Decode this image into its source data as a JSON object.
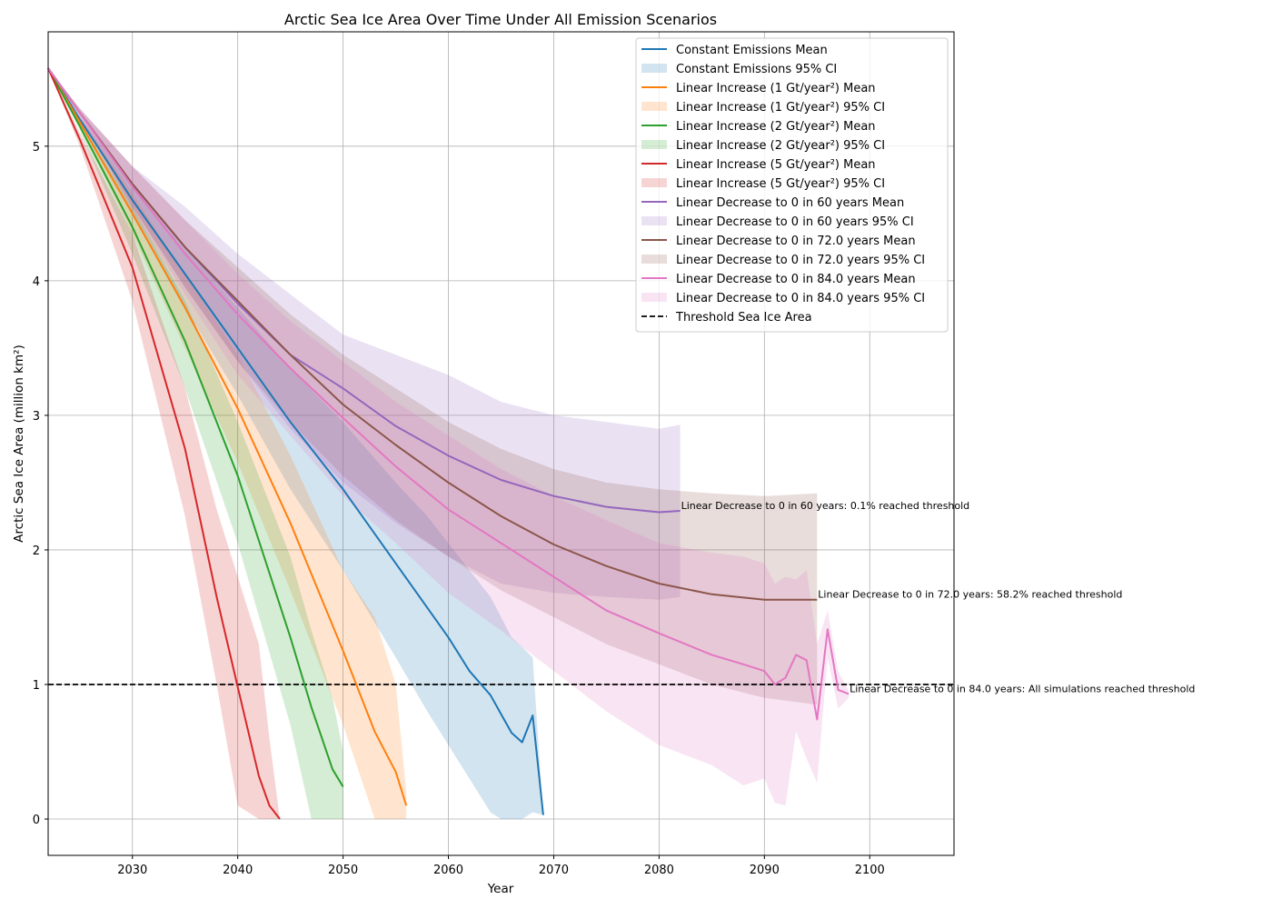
{
  "chart_data": {
    "type": "line",
    "title": "Arctic Sea Ice Area Over Time Under All Emission Scenarios",
    "xlabel": "Year",
    "ylabel": "Arctic Sea Ice Area (million km²)",
    "xlim": [
      2022,
      2108
    ],
    "ylim": [
      -0.27,
      5.85
    ],
    "x_ticks": [
      2030,
      2040,
      2050,
      2060,
      2070,
      2080,
      2090,
      2100
    ],
    "y_ticks": [
      0,
      1,
      2,
      3,
      4,
      5
    ],
    "grid": true,
    "legend_position": "upper right",
    "threshold": {
      "label": "Threshold Sea Ice Area",
      "value": 1.0,
      "color": "#000000",
      "style": "dashed"
    },
    "series": [
      {
        "name": "Constant Emissions Mean",
        "ci_name": "Constant Emissions 95% CI",
        "color": "#1f77b4",
        "x": [
          2022,
          2025,
          2030,
          2035,
          2040,
          2045,
          2050,
          2055,
          2058,
          2060,
          2062,
          2064,
          2065,
          2066,
          2067,
          2068,
          2069
        ],
        "mean": [
          5.58,
          5.2,
          4.6,
          4.05,
          3.5,
          2.95,
          2.45,
          1.9,
          1.57,
          1.35,
          1.1,
          0.92,
          0.78,
          0.64,
          0.57,
          0.77,
          0.03
        ],
        "lower": [
          5.58,
          5.18,
          4.5,
          3.8,
          3.15,
          2.45,
          1.85,
          1.2,
          0.8,
          0.55,
          0.3,
          0.05,
          0.0,
          0.0,
          0.0,
          0.05,
          0.03
        ],
        "upper": [
          5.58,
          5.22,
          4.7,
          4.25,
          3.8,
          3.35,
          2.95,
          2.5,
          2.25,
          2.05,
          1.85,
          1.65,
          1.5,
          1.35,
          1.28,
          1.2,
          0.03
        ]
      },
      {
        "name": "Linear Increase (1 Gt/year²) Mean",
        "ci_name": "Linear Increase (1 Gt/year²) 95% CI",
        "color": "#ff7f0e",
        "x": [
          2022,
          2025,
          2030,
          2035,
          2040,
          2045,
          2050,
          2053,
          2055,
          2056
        ],
        "mean": [
          5.58,
          5.18,
          4.5,
          3.8,
          3.05,
          2.2,
          1.25,
          0.65,
          0.35,
          0.1
        ],
        "lower": [
          5.58,
          5.15,
          4.35,
          3.5,
          2.65,
          1.7,
          0.7,
          0.0,
          0.0,
          0.0
        ],
        "upper": [
          5.58,
          5.21,
          4.65,
          4.05,
          3.45,
          2.7,
          1.85,
          1.5,
          1.0,
          0.2
        ]
      },
      {
        "name": "Linear Increase (2 Gt/year²) Mean",
        "ci_name": "Linear Increase (2 Gt/year²) 95% CI",
        "color": "#2ca02c",
        "x": [
          2022,
          2025,
          2030,
          2035,
          2040,
          2045,
          2047,
          2049,
          2050
        ],
        "mean": [
          5.58,
          5.15,
          4.4,
          3.55,
          2.55,
          1.35,
          0.83,
          0.37,
          0.24
        ],
        "lower": [
          5.58,
          5.12,
          4.2,
          3.2,
          2.05,
          0.7,
          0.0,
          0.0,
          0.0
        ],
        "upper": [
          5.58,
          5.19,
          4.55,
          3.85,
          2.95,
          1.95,
          1.4,
          0.9,
          0.5
        ]
      },
      {
        "name": "Linear Increase (5 Gt/year²) Mean",
        "ci_name": "Linear Increase (5 Gt/year²) 95% CI",
        "color": "#d62728",
        "x": [
          2022,
          2025,
          2030,
          2035,
          2038,
          2040,
          2042,
          2043,
          2044
        ],
        "mean": [
          5.58,
          5.05,
          4.1,
          2.75,
          1.65,
          0.98,
          0.32,
          0.1,
          0.0
        ],
        "lower": [
          5.58,
          5.0,
          3.85,
          2.25,
          1.0,
          0.1,
          0.0,
          0.0,
          0.0
        ],
        "upper": [
          5.58,
          5.1,
          4.35,
          3.2,
          2.3,
          1.8,
          1.3,
          0.6,
          0.0
        ]
      },
      {
        "name": "Linear Decrease to 0 in 60 years Mean",
        "ci_name": "Linear Decrease to 0 in 60 years 95% CI",
        "color": "#9467bd",
        "x": [
          2022,
          2025,
          2030,
          2035,
          2040,
          2045,
          2050,
          2055,
          2060,
          2065,
          2070,
          2075,
          2080,
          2082
        ],
        "mean": [
          5.58,
          5.25,
          4.72,
          4.25,
          3.83,
          3.45,
          3.2,
          2.92,
          2.7,
          2.52,
          2.4,
          2.32,
          2.28,
          2.29
        ],
        "lower": [
          5.58,
          5.22,
          4.55,
          3.95,
          3.4,
          2.9,
          2.5,
          2.2,
          1.95,
          1.75,
          1.68,
          1.65,
          1.63,
          1.65
        ],
        "upper": [
          5.58,
          5.28,
          4.85,
          4.55,
          4.2,
          3.9,
          3.6,
          3.45,
          3.3,
          3.1,
          3.0,
          2.95,
          2.9,
          2.93
        ]
      },
      {
        "name": "Linear Decrease to 0 in 72.0 years Mean",
        "ci_name": "Linear Decrease to 0 in 72.0 years 95% CI",
        "color": "#8c564b",
        "x": [
          2022,
          2025,
          2030,
          2035,
          2040,
          2045,
          2050,
          2055,
          2060,
          2065,
          2070,
          2075,
          2080,
          2085,
          2090,
          2095
        ],
        "mean": [
          5.58,
          5.25,
          4.72,
          4.25,
          3.85,
          3.45,
          3.08,
          2.78,
          2.5,
          2.25,
          2.04,
          1.88,
          1.75,
          1.67,
          1.63,
          1.63
        ],
        "lower": [
          5.58,
          5.22,
          4.55,
          3.95,
          3.4,
          2.95,
          2.55,
          2.22,
          1.95,
          1.7,
          1.5,
          1.3,
          1.15,
          1.0,
          0.9,
          0.85
        ],
        "upper": [
          5.58,
          5.28,
          4.85,
          4.45,
          4.1,
          3.75,
          3.45,
          3.2,
          2.95,
          2.75,
          2.6,
          2.5,
          2.45,
          2.42,
          2.4,
          2.42
        ]
      },
      {
        "name": "Linear Decrease to 0 in 84.0 years Mean",
        "ci_name": "Linear Decrease to 0 in 84.0 years 95% CI",
        "color": "#e377c2",
        "x": [
          2022,
          2025,
          2030,
          2035,
          2040,
          2045,
          2050,
          2055,
          2060,
          2065,
          2070,
          2075,
          2080,
          2085,
          2088,
          2090,
          2091,
          2092,
          2093,
          2094,
          2095,
          2096,
          2097,
          2098
        ],
        "mean": [
          5.58,
          5.25,
          4.7,
          4.2,
          3.75,
          3.35,
          2.98,
          2.62,
          2.3,
          2.05,
          1.8,
          1.55,
          1.38,
          1.22,
          1.15,
          1.1,
          1.0,
          1.05,
          1.22,
          1.18,
          0.74,
          1.41,
          0.96,
          0.93
        ],
        "lower": [
          5.58,
          5.22,
          4.52,
          3.9,
          3.3,
          2.85,
          2.4,
          2.05,
          1.68,
          1.4,
          1.1,
          0.8,
          0.55,
          0.4,
          0.25,
          0.3,
          0.12,
          0.1,
          0.65,
          0.45,
          0.27,
          1.2,
          0.82,
          0.9
        ],
        "upper": [
          5.58,
          5.28,
          4.85,
          4.45,
          4.05,
          3.7,
          3.4,
          3.1,
          2.85,
          2.6,
          2.4,
          2.22,
          2.05,
          1.98,
          1.95,
          1.9,
          1.75,
          1.8,
          1.78,
          1.85,
          1.3,
          1.55,
          1.1,
          0.95
        ]
      }
    ],
    "annotations": [
      {
        "text": "Linear Decrease to 0 in 60 years: 0.1% reached threshold",
        "x": 2082,
        "y": 2.29
      },
      {
        "text": "Linear Decrease to 0 in 72.0 years: 58.2% reached threshold",
        "x": 2095,
        "y": 1.63
      },
      {
        "text": "Linear Decrease to 0 in 84.0 years: All simulations reached threshold",
        "x": 2098,
        "y": 0.93
      }
    ]
  }
}
